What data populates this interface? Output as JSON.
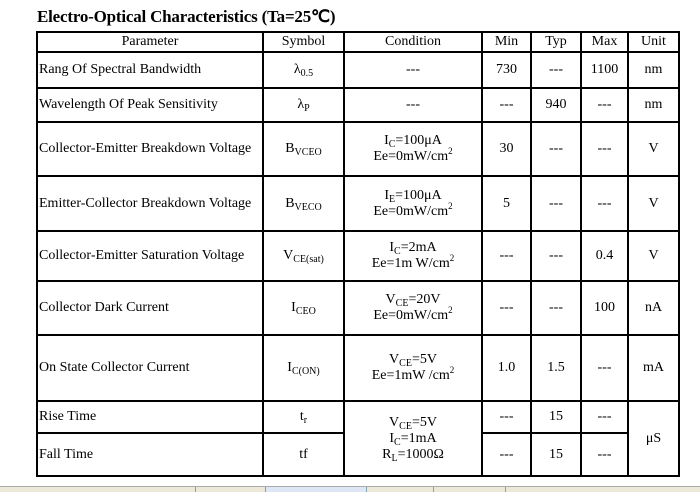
{
  "title": "Electro-Optical Characteristics (Ta=25℃)",
  "headers": [
    "Parameter",
    "Symbol",
    "Condition",
    "Min",
    "Typ",
    "Max",
    "Unit"
  ],
  "rows": [
    {
      "parameter": "Rang Of Spectral Bandwidth",
      "symbol": [
        {
          "t": "λ"
        },
        {
          "t": "0.5",
          "s": "sub"
        }
      ],
      "condition": [
        [
          {
            "t": "---"
          }
        ]
      ],
      "min": "730",
      "typ": "---",
      "max": "1100",
      "unit": "nm"
    },
    {
      "parameter": "Wavelength Of Peak Sensitivity",
      "symbol": [
        {
          "t": "λ"
        },
        {
          "t": "P",
          "s": "sub"
        }
      ],
      "condition": [
        [
          {
            "t": "---"
          }
        ]
      ],
      "min": "---",
      "typ": "940",
      "max": "---",
      "unit": "nm"
    },
    {
      "parameter": "Collector-Emitter Breakdown Voltage",
      "symbol": [
        {
          "t": "B"
        },
        {
          "t": "VCEO",
          "s": "sub"
        }
      ],
      "condition": [
        [
          {
            "t": "I"
          },
          {
            "t": "C",
            "s": "sub"
          },
          {
            "t": "=100μA"
          }
        ],
        [
          {
            "t": "Ee=0mW/cm"
          },
          {
            "t": "2",
            "s": "sup"
          }
        ]
      ],
      "min": "30",
      "typ": "---",
      "max": "---",
      "unit": "V"
    },
    {
      "parameter": "Emitter-Collector Breakdown Voltage",
      "symbol": [
        {
          "t": "B"
        },
        {
          "t": "VECO",
          "s": "sub"
        }
      ],
      "condition": [
        [
          {
            "t": "I"
          },
          {
            "t": "E",
            "s": "sub"
          },
          {
            "t": "=100μA"
          }
        ],
        [
          {
            "t": "Ee=0mW/cm"
          },
          {
            "t": "2",
            "s": "sup"
          }
        ]
      ],
      "min": "5",
      "typ": "---",
      "max": "---",
      "unit": "V"
    },
    {
      "parameter": "Collector-Emitter Saturation Voltage",
      "symbol": [
        {
          "t": "V"
        },
        {
          "t": "CE(sat)",
          "s": "sub"
        }
      ],
      "condition": [
        [
          {
            "t": "I"
          },
          {
            "t": "C",
            "s": "sub"
          },
          {
            "t": "=2mA"
          }
        ],
        [
          {
            "t": "Ee=1m W/cm"
          },
          {
            "t": "2",
            "s": "sup"
          }
        ]
      ],
      "min": "---",
      "typ": "---",
      "max": "0.4",
      "unit": "V"
    },
    {
      "parameter": "Collector Dark Current",
      "symbol": [
        {
          "t": "I"
        },
        {
          "t": "CEO",
          "s": "sub"
        }
      ],
      "condition": [
        [
          {
            "t": "V"
          },
          {
            "t": "CE",
            "s": "sub"
          },
          {
            "t": "=20V"
          }
        ],
        [
          {
            "t": "Ee=0mW/cm"
          },
          {
            "t": "2",
            "s": "sup"
          }
        ]
      ],
      "min": "---",
      "typ": "---",
      "max": "100",
      "unit": "nA"
    },
    {
      "parameter": "On State Collector Current",
      "symbol": [
        {
          "t": "I"
        },
        {
          "t": "C(ON)",
          "s": "sub"
        }
      ],
      "condition": [
        [
          {
            "t": "V"
          },
          {
            "t": "CE",
            "s": "sub"
          },
          {
            "t": "=5V"
          }
        ],
        [
          {
            "t": "Ee=1mW /cm"
          },
          {
            "t": "2",
            "s": "sup"
          }
        ]
      ],
      "min": "1.0",
      "typ": "1.5",
      "max": "---",
      "unit": "mA"
    },
    {
      "parameter": "Rise Time",
      "symbol": [
        {
          "t": "t"
        },
        {
          "t": "r",
          "s": "sub"
        }
      ],
      "condition": [
        [
          {
            "t": "V"
          },
          {
            "t": "CE",
            "s": "sub"
          },
          {
            "t": "=5V"
          }
        ],
        [
          {
            "t": "I"
          },
          {
            "t": "C",
            "s": "sub"
          },
          {
            "t": "=1mA"
          }
        ],
        [
          {
            "t": "R"
          },
          {
            "t": "L",
            "s": "sub"
          },
          {
            "t": "=1000Ω"
          }
        ]
      ],
      "min": "---",
      "typ": "15",
      "max": "---",
      "unit": "μS"
    },
    {
      "parameter": "Fall Time",
      "symbol": [
        {
          "t": "tf"
        }
      ],
      "min": "---",
      "typ": "15",
      "max": "---"
    }
  ]
}
